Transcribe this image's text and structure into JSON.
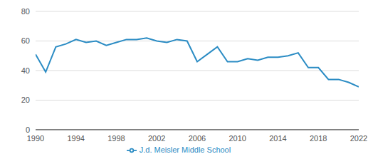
{
  "chart_data": {
    "type": "line",
    "x": [
      1990,
      1991,
      1992,
      1993,
      1994,
      1995,
      1996,
      1997,
      1998,
      1999,
      2000,
      2001,
      2002,
      2003,
      2004,
      2005,
      2006,
      2007,
      2008,
      2009,
      2010,
      2011,
      2012,
      2013,
      2014,
      2015,
      2016,
      2017,
      2018,
      2019,
      2020,
      2021,
      2022
    ],
    "series": [
      {
        "name": "J.d. Meisler Middle School",
        "color": "#2b8cc4",
        "values": [
          51,
          39,
          56,
          58,
          61,
          59,
          60,
          57,
          59,
          61,
          61,
          62,
          60,
          59,
          61,
          60,
          46,
          51,
          56,
          46,
          46,
          48,
          47,
          49,
          49,
          50,
          52,
          42,
          42,
          34,
          34,
          32,
          29
        ]
      }
    ],
    "xlim": [
      1990,
      2022
    ],
    "xticks": [
      1990,
      1994,
      1998,
      2002,
      2006,
      2010,
      2014,
      2018,
      2022
    ],
    "ylim": [
      0,
      80
    ],
    "yticks": [
      0,
      20,
      40,
      60,
      80
    ],
    "grid": true,
    "legend": "bottom"
  }
}
